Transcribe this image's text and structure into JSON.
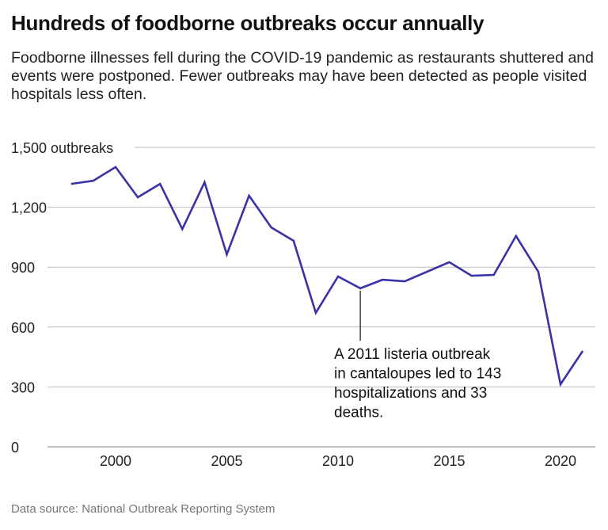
{
  "title": "Hundreds of foodborne outbreaks occur annually",
  "subtitle": "Foodborne illnesses fell during the COVID-19 pandemic as restaurants shuttered and events were postponed. Fewer outbreaks may have been detected as people visited hospitals less often.",
  "source": "Data source: National Outbreak Reporting System",
  "chart_data": {
    "type": "line",
    "title": "Hundreds of foodborne outbreaks occur annually",
    "xlabel": "",
    "ylabel": "",
    "ylim": [
      0,
      1500
    ],
    "xlim": [
      1998,
      2021
    ],
    "grid": true,
    "y_ticks": [
      0,
      300,
      600,
      900,
      1200,
      1500
    ],
    "y_tick_labels": [
      "0",
      "300",
      "600",
      "900",
      "1,200",
      "1,500 outbreaks"
    ],
    "x_ticks": [
      2000,
      2005,
      2010,
      2015,
      2020
    ],
    "x_tick_labels": [
      "2000",
      "2005",
      "2010",
      "2015",
      "2020"
    ],
    "line_color": "#3a33a8",
    "x": [
      1998,
      1999,
      2000,
      2001,
      2002,
      2003,
      2004,
      2005,
      2006,
      2007,
      2008,
      2009,
      2010,
      2011,
      2012,
      2013,
      2014,
      2015,
      2016,
      2017,
      2018,
      2019,
      2020,
      2021
    ],
    "values": [
      1317,
      1333,
      1401,
      1250,
      1317,
      1091,
      1325,
      964,
      1258,
      1099,
      1032,
      671,
      853,
      794,
      837,
      829,
      877,
      925,
      857,
      861,
      1056,
      877,
      313,
      480
    ],
    "annotation": {
      "x": 2011,
      "y": 794,
      "text_lines": [
        "A 2011 listeria outbreak",
        "in cantaloupes led to 143",
        "hospitalizations and 33",
        "deaths."
      ]
    }
  }
}
